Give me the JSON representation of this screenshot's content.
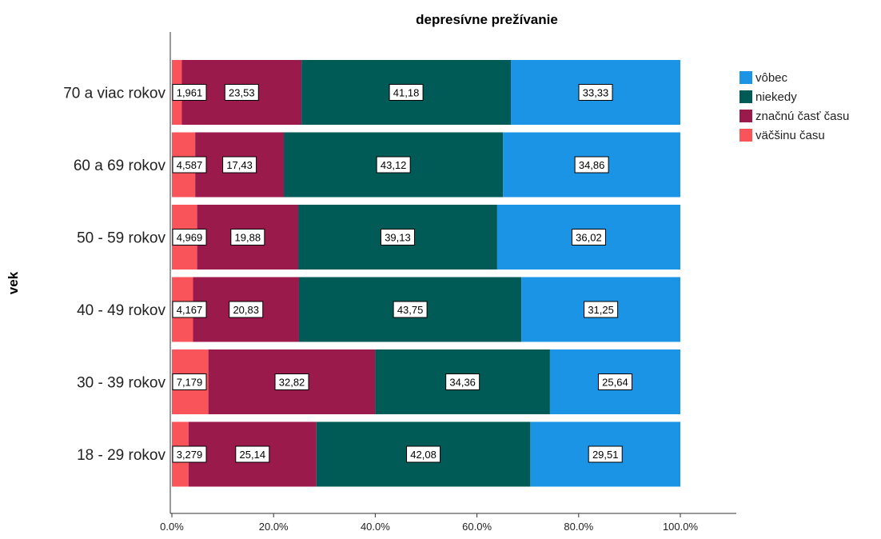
{
  "chart_data": {
    "type": "bar",
    "orientation": "horizontal",
    "stacked": true,
    "percent": true,
    "title": "depresívne prežívanie",
    "ylabel": "vek",
    "xlabel": "",
    "xlim": [
      0,
      100
    ],
    "x_ticks": [
      "0.0%",
      "20.0%",
      "40.0%",
      "60.0%",
      "80.0%",
      "100.0%"
    ],
    "categories": [
      "70 a viac rokov",
      "60 a 69 rokov",
      "50 - 59 rokov",
      "40 - 49 rokov",
      "30 - 39 rokov",
      "18 - 29 rokov"
    ],
    "series": [
      {
        "name": "väčšinu času",
        "color": "#f8545a",
        "values": [
          1.961,
          4.587,
          4.969,
          4.167,
          7.179,
          3.279
        ],
        "labels": [
          "1,961",
          "4,587",
          "4,969",
          "4,167",
          "7,179",
          "3,279"
        ]
      },
      {
        "name": "značnú časť času",
        "color": "#9a1a4b",
        "values": [
          23.53,
          17.43,
          19.88,
          20.83,
          32.82,
          25.14
        ],
        "labels": [
          "23,53",
          "17,43",
          "19,88",
          "20,83",
          "32,82",
          "25,14"
        ]
      },
      {
        "name": "niekedy",
        "color": "#005a56",
        "values": [
          41.18,
          43.12,
          39.13,
          43.75,
          34.36,
          42.08
        ],
        "labels": [
          "41,18",
          "43,12",
          "39,13",
          "43,75",
          "34,36",
          "42,08"
        ]
      },
      {
        "name": "vôbec",
        "color": "#1b94e6",
        "values": [
          33.33,
          34.86,
          36.02,
          31.25,
          25.64,
          29.51
        ],
        "labels": [
          "33,33",
          "34,86",
          "36,02",
          "31,25",
          "25,64",
          "29,51"
        ]
      }
    ],
    "legend": {
      "position": "right",
      "order": [
        "vôbec",
        "niekedy",
        "značnú časť času",
        "väčšinu času"
      ]
    },
    "grid": false
  }
}
